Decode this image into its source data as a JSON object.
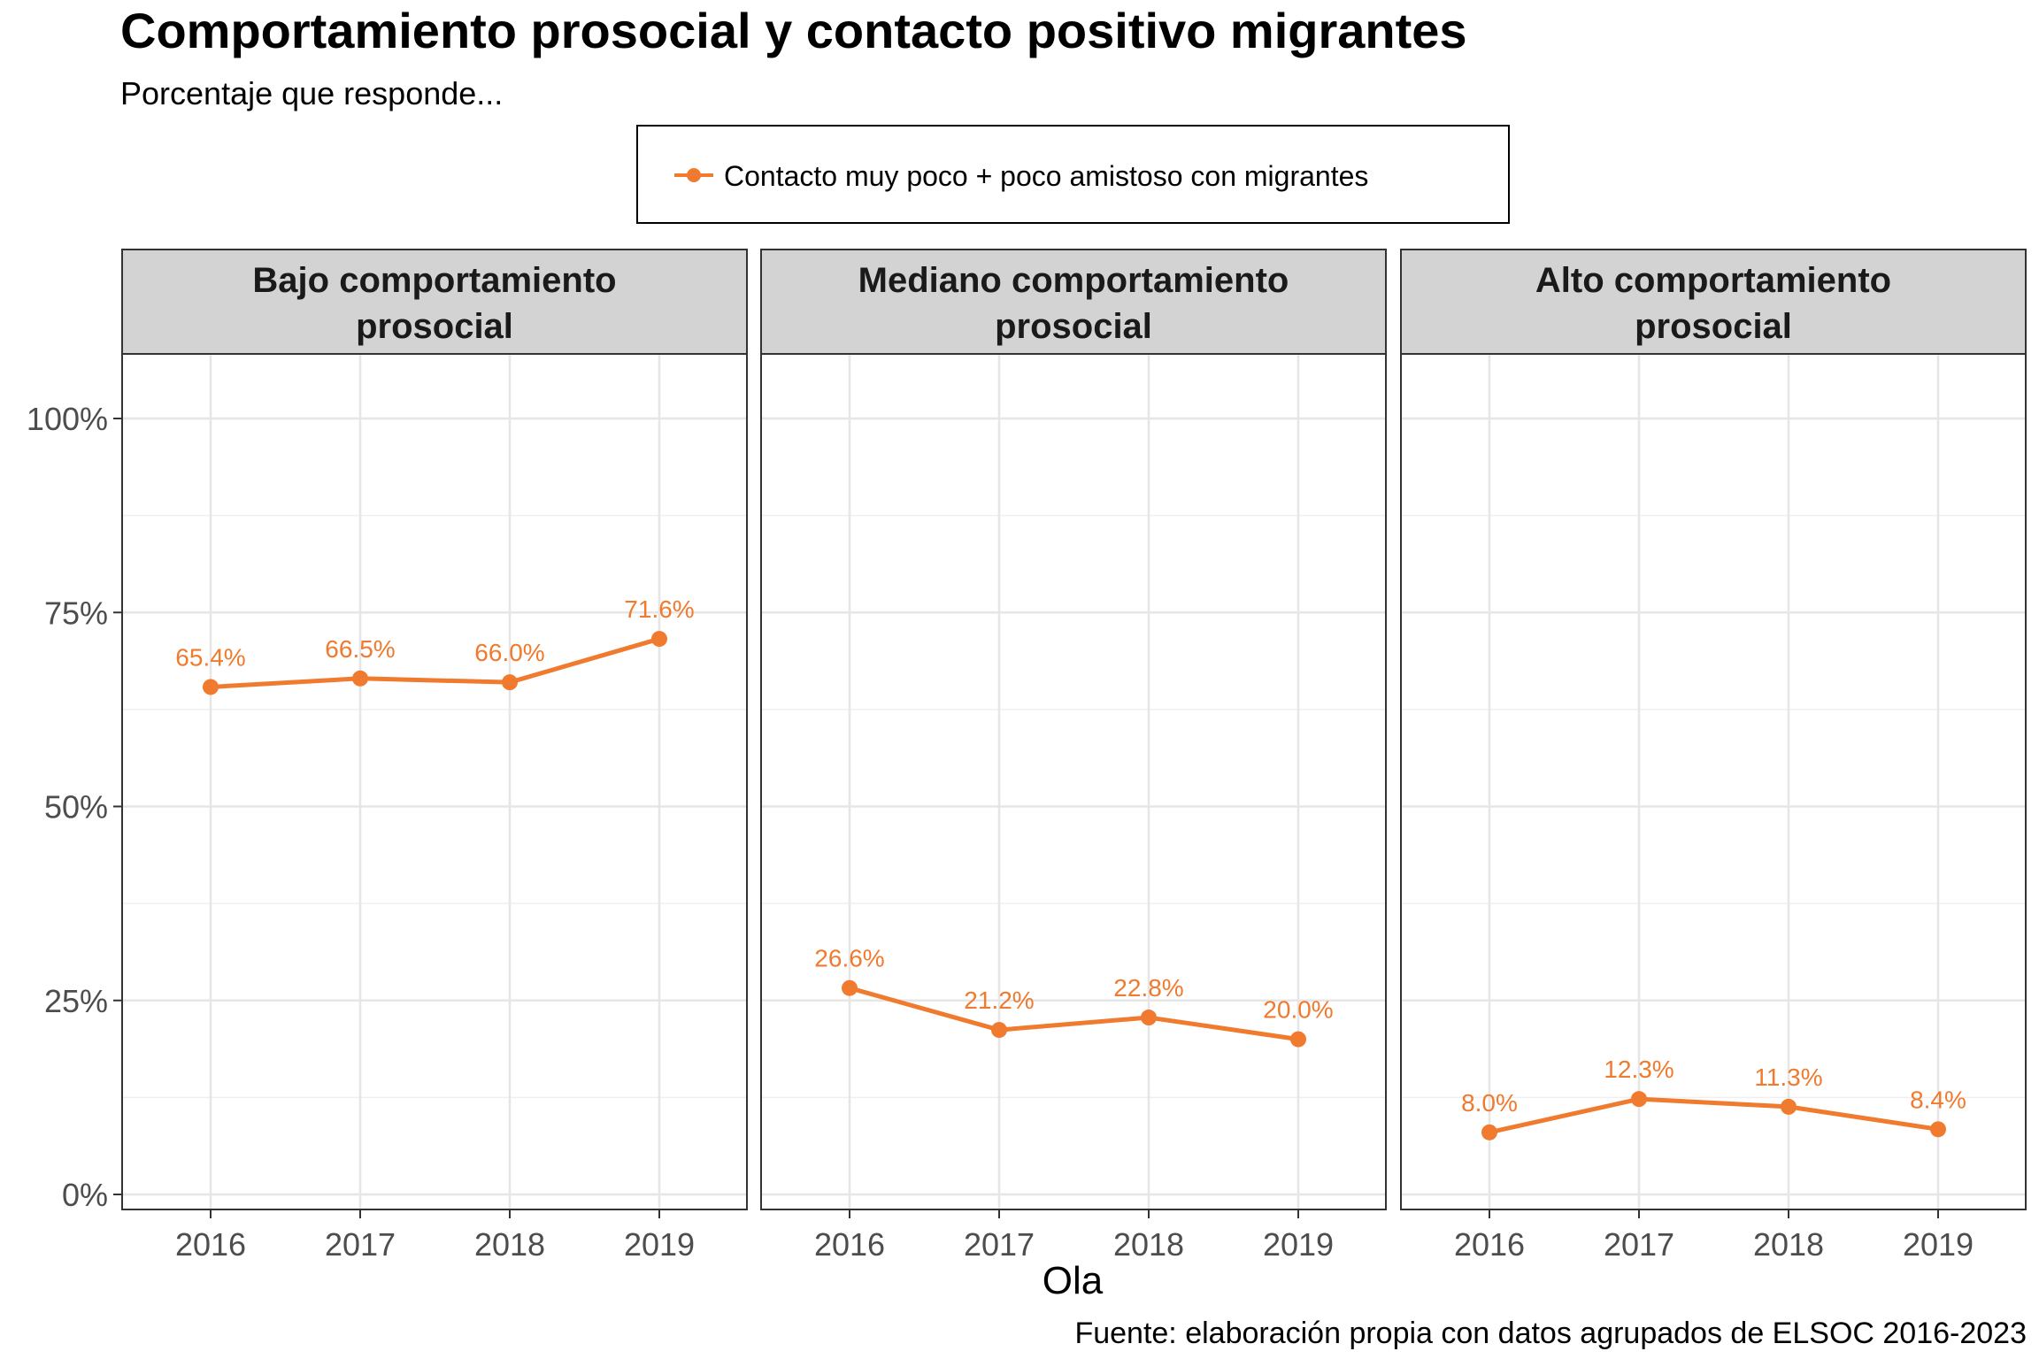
{
  "title": "Comportamiento prosocial y contacto positivo migrantes",
  "subtitle": "Porcentaje que responde...",
  "caption": "Fuente: elaboración propia con datos agrupados de ELSOC 2016-2023",
  "colors": {
    "series": "#F07A2E",
    "strip": "#D3D3D3",
    "grid": "#E6E6E6",
    "panel_border": "#333333"
  },
  "chart_data": {
    "type": "line",
    "facet_by": "comportamiento prosocial",
    "legend": {
      "position": "top",
      "entries": [
        "Contacto muy poco + poco amistoso con migrantes"
      ]
    },
    "xlabel": "Ola",
    "ylabel": "",
    "x": [
      "2016",
      "2017",
      "2018",
      "2019"
    ],
    "ylim": [
      0,
      100
    ],
    "yticks": [
      0,
      25,
      50,
      75,
      100
    ],
    "ytick_labels": [
      "0%",
      "25%",
      "50%",
      "75%",
      "100%"
    ],
    "grid": true,
    "panels": [
      {
        "strip": [
          "Bajo comportamiento",
          "prosocial"
        ],
        "series": [
          {
            "name": "Contacto muy poco + poco amistoso con migrantes",
            "values": [
              65.4,
              66.5,
              66.0,
              71.6
            ],
            "labels": [
              "65.4%",
              "66.5%",
              "66.0%",
              "71.6%"
            ]
          }
        ]
      },
      {
        "strip": [
          "Mediano comportamiento",
          "prosocial"
        ],
        "series": [
          {
            "name": "Contacto muy poco + poco amistoso con migrantes",
            "values": [
              26.6,
              21.2,
              22.8,
              20.0
            ],
            "labels": [
              "26.6%",
              "21.2%",
              "22.8%",
              "20.0%"
            ]
          }
        ]
      },
      {
        "strip": [
          "Alto comportamiento",
          "prosocial"
        ],
        "series": [
          {
            "name": "Contacto muy poco + poco amistoso con migrantes",
            "values": [
              8.0,
              12.3,
              11.3,
              8.4
            ],
            "labels": [
              "8.0%",
              "12.3%",
              "11.3%",
              "8.4%"
            ]
          }
        ]
      }
    ]
  }
}
